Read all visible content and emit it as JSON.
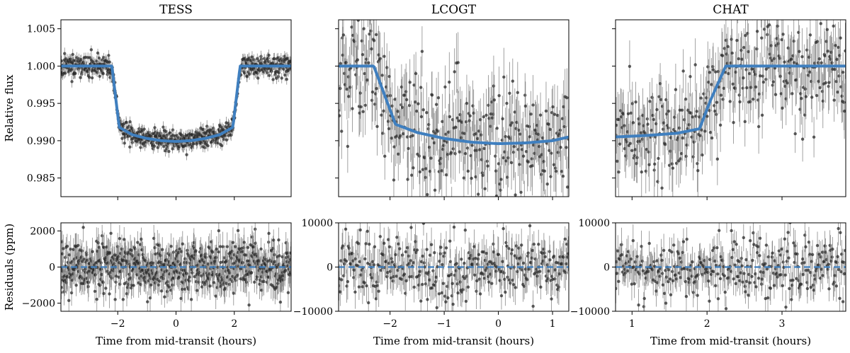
{
  "chart_data": [
    {
      "type": "scatter",
      "panel": "TESS flux",
      "title": "TESS",
      "ylabel": "Relative flux",
      "xlabel": "",
      "xlim": [
        -3.95,
        3.95
      ],
      "ylim": [
        0.9825,
        1.0062
      ],
      "xticks": [
        -2,
        0,
        2
      ],
      "xticklabels": [
        "",
        "",
        ""
      ],
      "yticks": [
        0.985,
        0.99,
        0.995,
        1.0,
        1.005
      ],
      "yticklabels": [
        "0.985",
        "0.990",
        "0.995",
        "1.000",
        "1.005"
      ],
      "model": {
        "x": [
          -3.95,
          -2.2,
          -1.95,
          -1.5,
          -1,
          -0.5,
          0,
          0.5,
          1,
          1.5,
          1.95,
          2.2,
          3.95
        ],
        "y": [
          1.0,
          1.0,
          0.9918,
          0.9908,
          0.9903,
          0.99,
          0.9899,
          0.99,
          0.9903,
          0.9908,
          0.9918,
          1.0,
          1.0
        ]
      },
      "scatter_sd": 0.0007,
      "errbar": 0.0007,
      "n_points": 700,
      "seed": 11
    },
    {
      "type": "scatter",
      "panel": "LCOGT flux",
      "title": "LCOGT",
      "xlim": [
        -2.95,
        1.3
      ],
      "ylim": [
        0.9825,
        1.0062
      ],
      "xticks": [
        -2,
        -1,
        0,
        1
      ],
      "xticklabels": [
        "",
        "",
        "",
        ""
      ],
      "yticks": [
        0.985,
        0.99,
        0.995,
        1.0,
        1.005
      ],
      "yticklabels": [
        "",
        "",
        "",
        "",
        ""
      ],
      "model": {
        "x": [
          -2.95,
          -2.3,
          -1.9,
          -1.5,
          -1,
          -0.5,
          0,
          0.5,
          1,
          1.3
        ],
        "y": [
          1.0,
          1.0,
          0.9922,
          0.9911,
          0.9903,
          0.9898,
          0.9896,
          0.9897,
          0.99,
          0.9905
        ]
      },
      "scatter_sd": 0.0038,
      "errbar": 0.0035,
      "n_points": 340,
      "seed": 23
    },
    {
      "type": "scatter",
      "panel": "CHAT flux",
      "title": "CHAT",
      "xlim": [
        0.78,
        3.85
      ],
      "ylim": [
        0.9825,
        1.0062
      ],
      "xticks": [
        1,
        2,
        3
      ],
      "xticklabels": [
        "",
        "",
        ""
      ],
      "yticks": [
        0.985,
        0.99,
        0.995,
        1.0,
        1.005
      ],
      "yticklabels": [
        "",
        "",
        "",
        "",
        ""
      ],
      "model": {
        "x": [
          0.78,
          1.2,
          1.6,
          1.9,
          2.05,
          2.25,
          3.85
        ],
        "y": [
          0.9905,
          0.9907,
          0.991,
          0.9916,
          0.9955,
          1.0,
          1.0
        ]
      },
      "scatter_sd": 0.0034,
      "errbar": 0.0032,
      "n_points": 330,
      "seed": 37
    },
    {
      "type": "scatter",
      "panel": "TESS residuals",
      "ylabel": "Residuals (ppm)",
      "xlabel": "Time from mid-transit (hours)",
      "xlim": [
        -3.95,
        3.95
      ],
      "ylim": [
        -2450,
        2450
      ],
      "xticks": [
        -2,
        0,
        2
      ],
      "xticklabels": [
        "−2",
        "0",
        "2"
      ],
      "yticks": [
        -2000,
        0,
        2000
      ],
      "yticklabels": [
        "−2000",
        "0",
        "2000"
      ],
      "scatter_sd": 720,
      "errbar": 700,
      "n_points": 700,
      "seed": 51
    },
    {
      "type": "scatter",
      "panel": "LCOGT residuals",
      "xlabel": "Time from mid-transit (hours)",
      "xlim": [
        -2.95,
        1.3
      ],
      "ylim": [
        -10000,
        10000
      ],
      "xticks": [
        -2,
        -1,
        0,
        1
      ],
      "xticklabels": [
        "−2",
        "−1",
        "0",
        "1"
      ],
      "yticks": [
        -10000,
        0,
        10000
      ],
      "yticklabels": [
        "−10000",
        "0",
        "10000"
      ],
      "scatter_sd": 3600,
      "errbar": 3400,
      "n_points": 340,
      "seed": 67
    },
    {
      "type": "scatter",
      "panel": "CHAT residuals",
      "xlabel": "Time from mid-transit (hours)",
      "xlim": [
        0.78,
        3.85
      ],
      "ylim": [
        -10000,
        10000
      ],
      "xticks": [
        1,
        2,
        3
      ],
      "xticklabels": [
        "1",
        "2",
        "3"
      ],
      "yticks": [
        -10000,
        0,
        10000
      ],
      "yticklabels": [
        "−10000",
        "0",
        "10000"
      ],
      "scatter_sd": 3300,
      "errbar": 3200,
      "n_points": 330,
      "seed": 83
    }
  ]
}
